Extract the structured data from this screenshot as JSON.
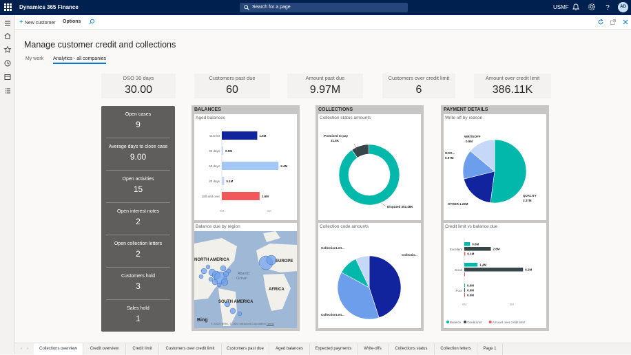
{
  "app": {
    "name": "Dynamics 365 Finance",
    "search_placeholder": "Search for a page",
    "company": "USMF",
    "avatar_initials": "AD"
  },
  "actions": {
    "new_customer": "New customer",
    "options": "Options"
  },
  "page": {
    "title": "Manage customer credit and collections"
  },
  "workspace_tabs": [
    "My work",
    "Analytics - all companies"
  ],
  "kpis": [
    {
      "label": "DSO 30 days",
      "value": "30.00"
    },
    {
      "label": "Customers past due",
      "value": "60"
    },
    {
      "label": "Amount past due",
      "value": "9.97M"
    },
    {
      "label": "Customers over credit limit",
      "value": "6"
    },
    {
      "label": "Amount over credit limit",
      "value": "386.11K"
    }
  ],
  "cases": [
    {
      "label": "Open cases",
      "value": "9"
    },
    {
      "label": "Average days to close case",
      "value": "9.00"
    },
    {
      "label": "Open activities",
      "value": "15"
    },
    {
      "label": "Open interest notes",
      "value": "2"
    },
    {
      "label": "Open collection letters",
      "value": "2"
    },
    {
      "label": "Customers hold",
      "value": "3"
    },
    {
      "label": "Sales hold",
      "value": "1"
    }
  ],
  "panels": {
    "balances": "BALANCES",
    "collections": "COLLECTIONS",
    "payment_details": "PAYMENT DETAILS"
  },
  "map": {
    "title": "Balance due by region",
    "labels": [
      "NORTH AMERICA",
      "EUROPE",
      "Atlantic",
      "Ocean",
      "AFRICA",
      "SOUTH AMERICA"
    ],
    "brand": "Bing",
    "copyright": "© 2022 HERE, © 2022 Microsoft Corporation",
    "terms": "Terms"
  },
  "chart_data": [
    {
      "name": "aged-balances",
      "type": "bar",
      "title": "Aged balances",
      "orientation": "horizontal",
      "categories": [
        "Current",
        "90 days",
        "60 days",
        "30 days",
        "180 and over"
      ],
      "values": [
        1.5,
        0.0,
        2.4,
        0.1,
        1.6
      ],
      "labels": [
        "1.5M",
        "0.0M",
        "2.4M",
        "0.1M",
        "1.6M"
      ],
      "colors": [
        "#12239e",
        "#c5d8f7",
        "#a4c8f5",
        "#c5d8f7",
        "#f2585b"
      ],
      "xticks": [
        "0M",
        "2M"
      ],
      "xlim": [
        0,
        2.8
      ]
    },
    {
      "name": "collection-status-amounts",
      "type": "pie",
      "title": "Collection status amounts",
      "donut": true,
      "slices": [
        {
          "label": "Promised to pay",
          "value": 31.8,
          "text": "31.8K",
          "color": "#374649"
        },
        {
          "label": "Disputed",
          "value": 302.48,
          "text": "302.48K",
          "color": "#01b8aa"
        }
      ]
    },
    {
      "name": "collection-code-amounts",
      "type": "pie",
      "title": "Collection code amounts",
      "slices": [
        {
          "label": "Collectio...",
          "value": 45,
          "color": "#12239e"
        },
        {
          "label": "CollectionLett...",
          "value": 38,
          "color": "#6d9eeb"
        },
        {
          "label": "CollectionLett...",
          "value": 10,
          "color": "#01b8aa"
        },
        {
          "label": "",
          "value": 7,
          "color": "#c5d8f7"
        }
      ]
    },
    {
      "name": "write-off-by-reason",
      "type": "pie",
      "title": "Write off by reason",
      "slices": [
        {
          "label": "QUALITY",
          "value": 3.37,
          "text": "3.37M",
          "color": "#01b8aa"
        },
        {
          "label": "OTHER",
          "value": 1.23,
          "text": "1.23M",
          "color": "#12239e"
        },
        {
          "label": "GOO...",
          "value": 0.97,
          "text": "0.97M",
          "color": "#6d9eeb"
        },
        {
          "label": "WRITEOFF",
          "value": 0.9,
          "text": "0.9M",
          "color": "#c5d8f7"
        }
      ]
    },
    {
      "name": "credit-limit-vs-balance-due",
      "type": "bar",
      "title": "Credit limit vs balance due",
      "orientation": "horizontal",
      "categories": [
        "Excellent",
        "Good",
        "Poor"
      ],
      "series": [
        {
          "name": "Balance",
          "color": "#01b8aa",
          "values": [
            0.6,
            1.4,
            0.0
          ],
          "labels": [
            "0.6M",
            "1.4M",
            "0.0M"
          ]
        },
        {
          "name": "Credit limit",
          "color": "#374649",
          "values": [
            2.8,
            6.2,
            0.0
          ],
          "labels": [
            "2.8M",
            "6.2M",
            "0.0M"
          ]
        },
        {
          "name": "Amount over credit limit",
          "color": "#f2585b",
          "values": [
            0.1,
            0.0,
            0.0
          ],
          "labels": [
            "0.1M",
            "",
            "0.0M"
          ]
        }
      ],
      "xticks": [
        "0M",
        "5M"
      ],
      "xlim": [
        0,
        8
      ]
    }
  ],
  "bottom_tabs": [
    "Collections overview",
    "Credit overview",
    "Credit limit",
    "Customers over credit limit",
    "Customers past due",
    "Aged balances",
    "Expected payments",
    "Write-offs",
    "Collections status",
    "Collection letters",
    "Page 1"
  ],
  "colors": {
    "header": "#002050",
    "accent": "#0078d4"
  }
}
